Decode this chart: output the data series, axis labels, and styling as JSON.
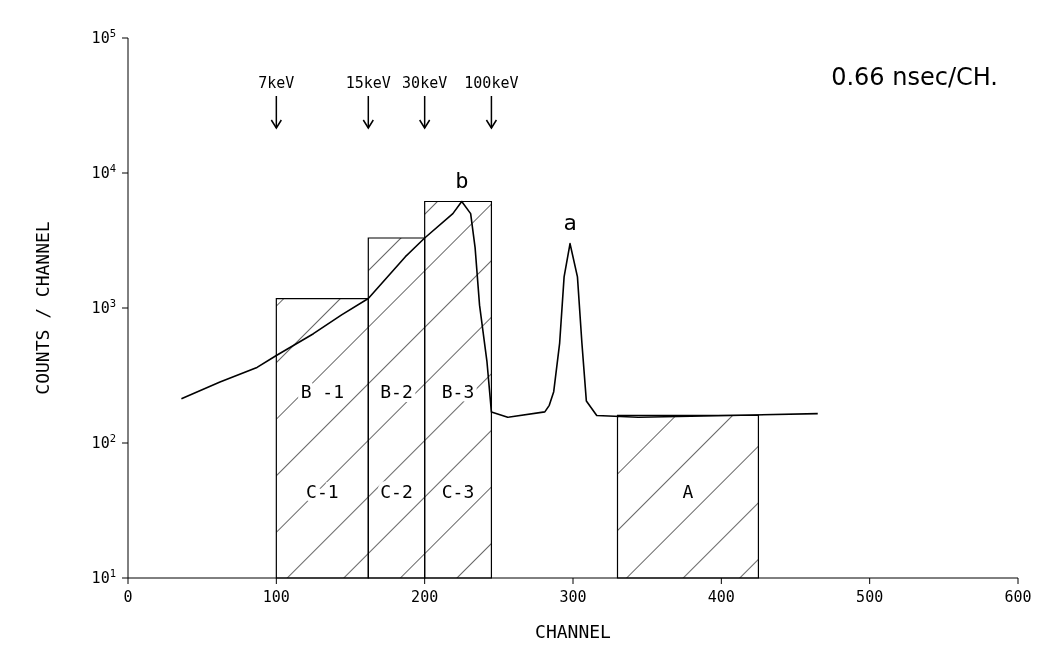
{
  "chart_data": {
    "type": "line",
    "xlabel": "CHANNEL",
    "ylabel": "COUNTS / CHANNEL",
    "log": "y",
    "xlim": [
      0,
      600
    ],
    "xticks": [
      0,
      100,
      200,
      300,
      400,
      500,
      600
    ],
    "ylim": [
      10,
      100000
    ],
    "yticks": [
      {
        "value": 10,
        "label": "10$^{1}$"
      },
      {
        "value": 100,
        "label": "10$^{2}$"
      },
      {
        "value": 1000,
        "label": "10$^{3}$"
      },
      {
        "value": 10000,
        "label": "10$^{4}$"
      },
      {
        "value": 100000,
        "label": "10$^{5}$"
      }
    ],
    "series": [
      {
        "color": "#000000",
        "x": [
          36,
          62,
          87,
          100,
          125,
          144,
          162,
          187,
          200,
          219,
          225,
          231,
          234,
          237,
          242,
          245,
          256,
          281,
          284,
          287,
          291,
          294,
          298,
          303,
          306,
          309,
          316,
          344,
          406,
          465
        ],
        "values": [
          213,
          283,
          363,
          445,
          645,
          890,
          1175,
          2400,
          3300,
          5000,
          6150,
          5000,
          2800,
          1050,
          400,
          170,
          155,
          170,
          190,
          240,
          550,
          1700,
          3000,
          1700,
          550,
          205,
          160,
          155,
          160,
          165
        ]
      }
    ],
    "ref_lines": [
      {
        "axis": "x",
        "value": 100,
        "label": "7keV"
      },
      {
        "axis": "x",
        "value": 162,
        "label": "15keV"
      },
      {
        "axis": "x",
        "value": 200,
        "label": "30keV"
      },
      {
        "axis": "x",
        "value": 245,
        "label": "100keV"
      }
    ],
    "bands": [
      {
        "axis": "x",
        "from": 100,
        "to": 162,
        "label": "C-1"
      },
      {
        "axis": "x",
        "from": 162,
        "to": 200,
        "label": "C-2"
      },
      {
        "axis": "x",
        "from": 200,
        "to": 245,
        "label": "C-3"
      },
      {
        "axis": "x",
        "from": 330,
        "to": 425,
        "label": "A"
      }
    ],
    "annotations": [
      "0.66 nsec/CH.",
      "B -1",
      "B-2",
      "B-3",
      {
        "text": "b",
        "x": 225,
        "y": 6150
      },
      {
        "text": "a",
        "x": 298,
        "y": 3000
      }
    ]
  }
}
